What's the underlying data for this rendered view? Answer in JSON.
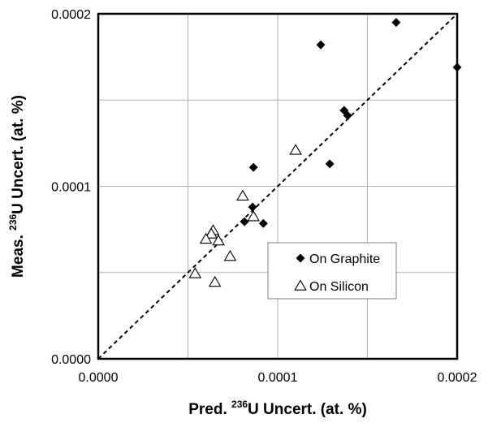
{
  "chart_data": {
    "type": "scatter",
    "title": "",
    "xlabel": {
      "prefix": "Pred. ",
      "sup": "236",
      "suffix": "U Uncert. (at. %)"
    },
    "ylabel": {
      "prefix": "Meas. ",
      "sup": "236",
      "suffix": "U Uncert. (at. %)"
    },
    "xlim": [
      0,
      0.0002
    ],
    "ylim": [
      0,
      0.0002
    ],
    "x_ticks": [
      0,
      0.0001,
      0.0002
    ],
    "y_ticks": [
      0,
      0.0001,
      0.0002
    ],
    "x_tick_labels": [
      "0.0000",
      "0.0001",
      "0.0002"
    ],
    "y_tick_labels": [
      "0.0000",
      "0.0001",
      "0.0002"
    ],
    "gridlines": [
      0,
      5e-05,
      0.0001,
      0.00015,
      0.0002
    ],
    "grid": true,
    "reference_line": {
      "style": "dashed",
      "from": [
        0,
        0
      ],
      "to": [
        0.0002,
        0.0002
      ]
    },
    "legend_position": "lower-right",
    "series": [
      {
        "name": "On Graphite",
        "marker": "diamond",
        "color": "#000000",
        "points": [
          {
            "x": 0.000166,
            "y": 0.000195
          },
          {
            "x": 0.000124,
            "y": 0.000182
          },
          {
            "x": 0.0002,
            "y": 0.000169
          },
          {
            "x": 0.000137,
            "y": 0.000144
          },
          {
            "x": 0.000139,
            "y": 0.000141
          },
          {
            "x": 0.000129,
            "y": 0.000113
          },
          {
            "x": 8.65e-05,
            "y": 0.000111
          },
          {
            "x": 8.6e-05,
            "y": 8.8e-05
          },
          {
            "x": 8.15e-05,
            "y": 7.95e-05
          },
          {
            "x": 9.2e-05,
            "y": 7.85e-05
          }
        ]
      },
      {
        "name": "On Silicon",
        "marker": "triangle",
        "color": "#000000",
        "points": [
          {
            "x": 0.00011,
            "y": 0.000121
          },
          {
            "x": 8.05e-05,
            "y": 9.45e-05
          },
          {
            "x": 8.65e-05,
            "y": 8.25e-05
          },
          {
            "x": 6.4e-05,
            "y": 7.45e-05
          },
          {
            "x": 6.3e-05,
            "y": 7.25e-05
          },
          {
            "x": 6e-05,
            "y": 6.95e-05
          },
          {
            "x": 6.7e-05,
            "y": 6.85e-05
          },
          {
            "x": 7.35e-05,
            "y": 5.95e-05
          },
          {
            "x": 5.4e-05,
            "y": 4.95e-05
          },
          {
            "x": 6.5e-05,
            "y": 4.45e-05
          }
        ]
      }
    ]
  }
}
